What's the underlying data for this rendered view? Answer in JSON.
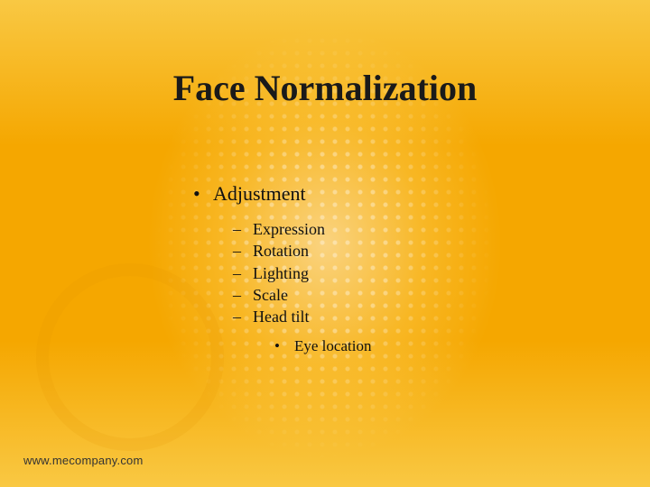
{
  "slide": {
    "title": "Face Normalization",
    "background": {
      "base_color": "#f5a700",
      "highlight_color": "#f9c843",
      "dot_color_rgba": "rgba(255,255,255,0.65)"
    },
    "bullet_level1": {
      "items": [
        {
          "label": "Adjustment"
        }
      ],
      "marker": "•",
      "fontsize": 22
    },
    "bullet_level2": {
      "items": [
        {
          "label": "Expression"
        },
        {
          "label": "Rotation"
        },
        {
          "label": "Lighting"
        },
        {
          "label": "Scale"
        },
        {
          "label": "Head tilt"
        }
      ],
      "marker": "–",
      "fontsize": 18
    },
    "bullet_level3": {
      "items": [
        {
          "label": "Eye location"
        }
      ],
      "marker": "•",
      "fontsize": 17
    },
    "title_fontsize": 40,
    "text_color": "#111111"
  },
  "footer": {
    "url": "www.mecompany.com",
    "fontsize": 13,
    "color": "#333333"
  }
}
